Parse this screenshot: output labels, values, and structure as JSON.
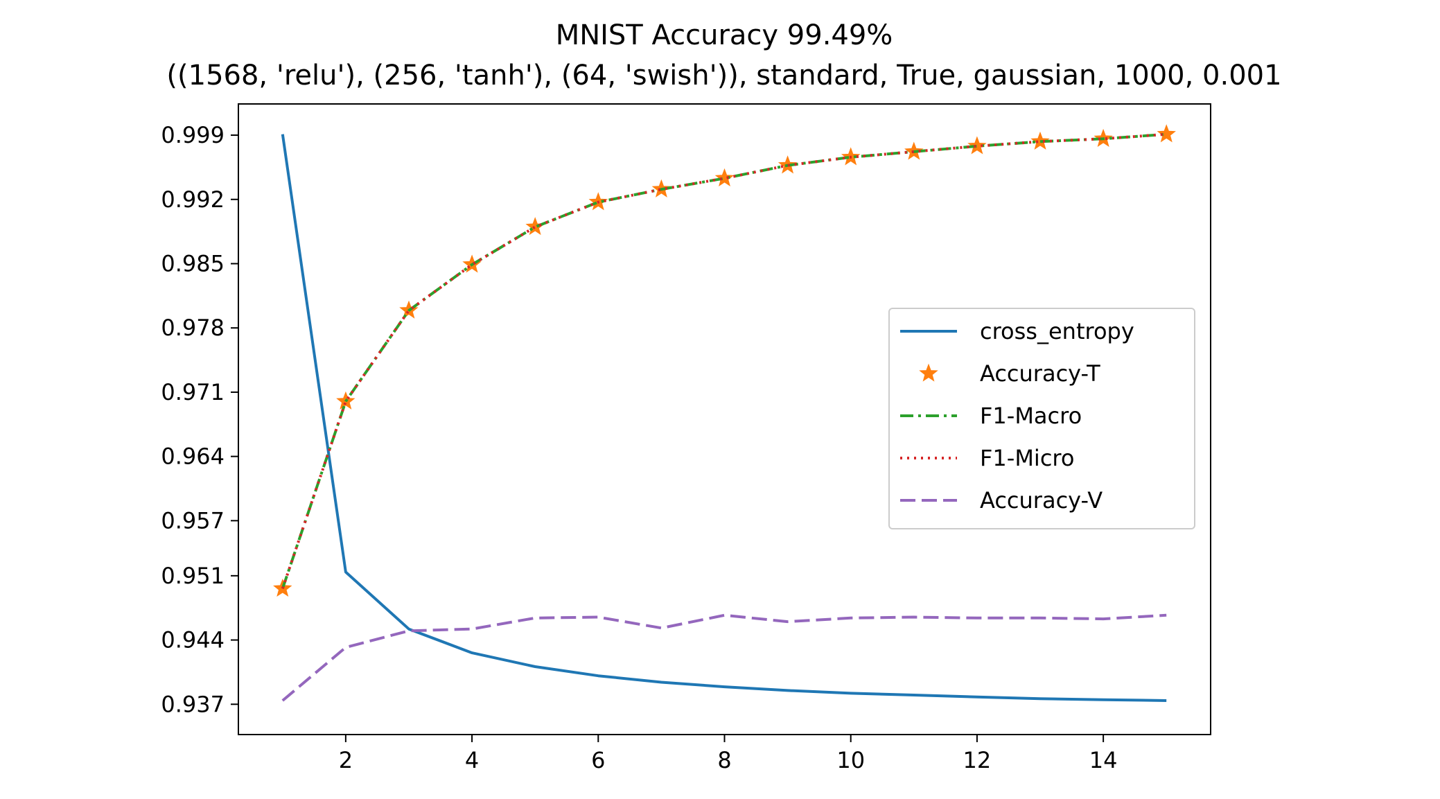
{
  "chart_data": {
    "type": "line",
    "title": "MNIST Accuracy 99.49%",
    "subtitle": "((1568, 'relu'), (256, 'tanh'), (64, 'swish')), standard, True, gaussian, 1000, 0.001",
    "xlabel": "",
    "ylabel": "",
    "x": [
      1,
      2,
      3,
      4,
      5,
      6,
      7,
      8,
      9,
      10,
      11,
      12,
      13,
      14,
      15
    ],
    "xlim": [
      0.3,
      15.7
    ],
    "ylim": [
      0.9337,
      1.0024
    ],
    "x_ticks": [
      2,
      4,
      6,
      8,
      10,
      12,
      14
    ],
    "y_ticks": [
      0.937,
      0.944,
      0.951,
      0.957,
      0.964,
      0.971,
      0.978,
      0.985,
      0.992,
      0.999
    ],
    "y_tick_labels": [
      "0.937",
      "0.944",
      "0.951",
      "0.957",
      "0.964",
      "0.971",
      "0.978",
      "0.985",
      "0.992",
      "0.999"
    ],
    "grid": false,
    "legend_position": "center-right",
    "series": [
      {
        "name": "cross_entropy",
        "style": "solid",
        "color": "#1f77b4",
        "values": [
          0.9991,
          0.9514,
          0.9452,
          0.9426,
          0.9411,
          0.9401,
          0.9394,
          0.9389,
          0.9385,
          0.9382,
          0.938,
          0.9378,
          0.9376,
          0.9375,
          0.9374
        ]
      },
      {
        "name": "Accuracy-T",
        "style": "star-markers",
        "color": "#ff7f0e",
        "values": [
          0.9496,
          0.97,
          0.9799,
          0.9849,
          0.989,
          0.9917,
          0.9931,
          0.9943,
          0.9957,
          0.9966,
          0.9972,
          0.9978,
          0.9983,
          0.9986,
          0.9991
        ]
      },
      {
        "name": "F1-Macro",
        "style": "dashdot",
        "color": "#2ca02c",
        "values": [
          0.9496,
          0.97,
          0.9799,
          0.9849,
          0.989,
          0.9917,
          0.9931,
          0.9943,
          0.9957,
          0.9966,
          0.9972,
          0.9978,
          0.9983,
          0.9986,
          0.9991
        ]
      },
      {
        "name": "F1-Micro",
        "style": "dotted",
        "color": "#d62728",
        "values": [
          0.9496,
          0.97,
          0.9799,
          0.9849,
          0.989,
          0.9917,
          0.9931,
          0.9943,
          0.9957,
          0.9966,
          0.9972,
          0.9978,
          0.9983,
          0.9986,
          0.9991
        ]
      },
      {
        "name": "Accuracy-V",
        "style": "dashed",
        "color": "#9467bd",
        "values": [
          0.9374,
          0.9432,
          0.945,
          0.9452,
          0.9464,
          0.9465,
          0.9453,
          0.9467,
          0.946,
          0.9464,
          0.9465,
          0.9464,
          0.9464,
          0.9463,
          0.9467
        ]
      }
    ]
  }
}
